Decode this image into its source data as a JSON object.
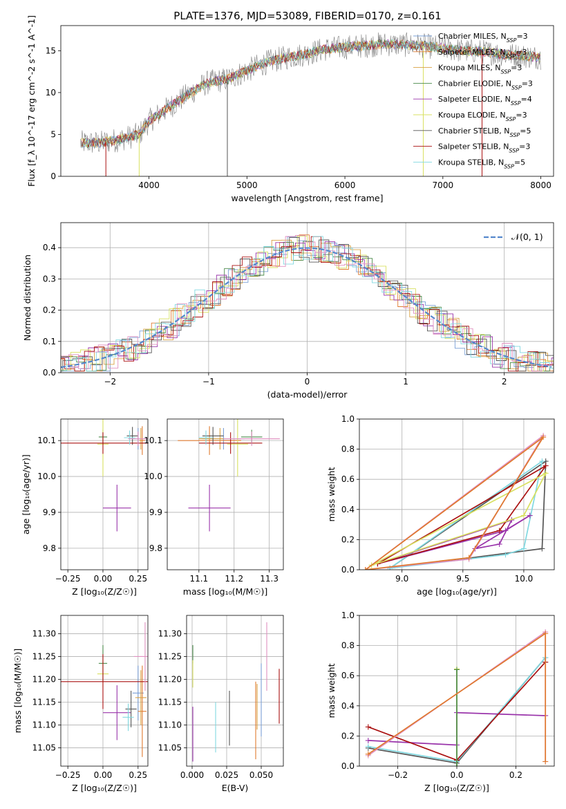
{
  "figure": {
    "title": "PLATE=1376, MJD=53089, FIBERID=0170, z=0.161"
  },
  "colors": {
    "chabrier_miles": "#7a9fd6",
    "salpeter_miles": "#e07a2e",
    "kroupa_miles": "#d9a040",
    "chabrier_elodie": "#4a8a4a",
    "salpeter_elodie": "#9933aa",
    "kroupa_elodie": "#d8e060",
    "chabrier_stelib": "#555555",
    "salpeter_stelib": "#aa1111",
    "kroupa_stelib": "#80d8e0",
    "pink": "#e090c0",
    "gauss": "#5588cc",
    "data": "#808080"
  },
  "chart_data": [
    {
      "id": "spectrum",
      "type": "line",
      "xlabel": "wavelength [Angstrom, rest frame]",
      "ylabel": "Flux [f_λ 10^-17 erg cm^-2 s^-1 A^-1]",
      "xlim": [
        3100,
        8130
      ],
      "ylim": [
        0,
        18
      ],
      "xticks": [
        "4000",
        "5000",
        "6000",
        "7000",
        "8000"
      ],
      "yticks": [
        "0",
        "5",
        "10",
        "15"
      ],
      "legend_position": "right",
      "legend": [
        {
          "label": "Chabrier MILES, N",
          "sub": "SSP",
          "eq": "=3"
        },
        {
          "label": "Salpeter MILES, N",
          "sub": "SSP",
          "eq": "=3"
        },
        {
          "label": "Kroupa MILES, N",
          "sub": "SSP",
          "eq": "=3"
        },
        {
          "label": "Chabrier ELODIE, N",
          "sub": "SSP",
          "eq": "=3"
        },
        {
          "label": "Salpeter ELODIE, N",
          "sub": "SSP",
          "eq": "=4"
        },
        {
          "label": "Kroupa ELODIE, N",
          "sub": "SSP",
          "eq": "=3"
        },
        {
          "label": "Chabrier STELIB, N",
          "sub": "SSP",
          "eq": "=5"
        },
        {
          "label": "Salpeter STELIB, N",
          "sub": "SSP",
          "eq": "=3"
        },
        {
          "label": "Kroupa STELIB, N",
          "sub": "SSP",
          "eq": "=5"
        }
      ],
      "continuum": {
        "x": [
          3300,
          3500,
          3700,
          3900,
          4000,
          4200,
          4400,
          4600,
          4800,
          5000,
          5200,
          5400,
          5600,
          5800,
          6000,
          6200,
          6400,
          6600,
          6800,
          7000,
          7200,
          7400,
          7600,
          7800,
          8000
        ],
        "y": [
          4.0,
          4.0,
          4.4,
          5.0,
          6.6,
          8.2,
          9.8,
          11.2,
          11.6,
          12.6,
          13.6,
          14.2,
          14.6,
          15.2,
          15.4,
          15.6,
          15.8,
          15.7,
          15.6,
          15.3,
          15.0,
          14.9,
          14.6,
          14.4,
          14.2
        ]
      }
    },
    {
      "id": "residuals",
      "type": "line",
      "xlabel": "(data-model)/error",
      "ylabel": "Normed distribution",
      "xlim": [
        -2.5,
        2.5
      ],
      "ylim": [
        0,
        0.48
      ],
      "xticks": [
        "−2",
        "−1",
        "0",
        "1",
        "2"
      ],
      "yticks": [
        "0.0",
        "0.1",
        "0.2",
        "0.3",
        "0.4"
      ],
      "grid": true,
      "legend_position": "top-right",
      "legend": [
        {
          "label": "𝒩(0, 1)"
        }
      ]
    },
    {
      "id": "age_vs_Z",
      "type": "scatter",
      "xlabel": "Z [log₁₀(Z/Z☉)]",
      "ylabel": "age  [log₁₀(age/yr)]",
      "xlim": [
        -0.3,
        0.32
      ],
      "ylim": [
        9.74,
        10.16
      ],
      "xticks": [
        "−0.25",
        "0.00",
        "0.25"
      ],
      "yticks": [
        "9.8",
        "9.9",
        "10.0",
        "10.1"
      ],
      "grid": true,
      "points": [
        {
          "c": "chabrier_miles",
          "x": 0.25,
          "xe": 0.04,
          "y": 10.105,
          "ye": 0.03
        },
        {
          "c": "salpeter_miles",
          "x": 0.28,
          "xe": 0.02,
          "y": 10.1,
          "ye": 0.04
        },
        {
          "c": "kroupa_miles",
          "x": 0.27,
          "xe": 0.03,
          "y": 10.105,
          "ye": 0.03
        },
        {
          "c": "chabrier_elodie",
          "x": 0.0,
          "xe": 0.03,
          "y": 10.11,
          "ye": 0.02
        },
        {
          "c": "salpeter_elodie",
          "x": 0.1,
          "xe": 0.1,
          "y": 9.912,
          "ye": 0.065
        },
        {
          "c": "kroupa_elodie",
          "x": 0.0,
          "xe": 0.04,
          "y": 10.09,
          "ye": 0.09
        },
        {
          "c": "chabrier_stelib",
          "x": 0.21,
          "xe": 0.04,
          "y": 10.113,
          "ye": 0.025
        },
        {
          "c": "salpeter_stelib",
          "x": 0.0,
          "xe": 0.38,
          "y": 10.093,
          "ye": 0.03
        },
        {
          "c": "kroupa_stelib",
          "x": 0.19,
          "xe": 0.04,
          "y": 10.108,
          "ye": 0.02
        },
        {
          "c": "pink",
          "x": 0.25,
          "xe": 0.07,
          "y": 10.105,
          "ye": 0.02
        }
      ]
    },
    {
      "id": "age_vs_mass",
      "type": "scatter",
      "xlabel": "mass [log₁₀(M/M☉)]",
      "ylabel": "",
      "xlim": [
        11.01,
        11.34
      ],
      "ylim": [
        9.74,
        10.16
      ],
      "xticks": [
        "11.1",
        "11.2",
        "11.3"
      ],
      "yticks": [
        "9.8",
        "9.9",
        "10.0",
        "10.1"
      ],
      "grid": true,
      "points": [
        {
          "c": "chabrier_miles",
          "x": 11.17,
          "xe": 0.06,
          "y": 10.105,
          "ye": 0.03
        },
        {
          "c": "salpeter_miles",
          "x": 11.13,
          "xe": 0.09,
          "y": 10.1,
          "ye": 0.04
        },
        {
          "c": "kroupa_miles",
          "x": 11.16,
          "xe": 0.06,
          "y": 10.105,
          "ye": 0.03
        },
        {
          "c": "chabrier_elodie",
          "x": 11.25,
          "xe": 0.03,
          "y": 10.11,
          "ye": 0.02
        },
        {
          "c": "salpeter_elodie",
          "x": 11.13,
          "xe": 0.06,
          "y": 9.912,
          "ye": 0.065
        },
        {
          "c": "kroupa_elodie",
          "x": 11.21,
          "xe": 0.03,
          "y": 10.09,
          "ye": 0.09
        },
        {
          "c": "chabrier_stelib",
          "x": 11.14,
          "xe": 0.03,
          "y": 10.113,
          "ye": 0.025
        },
        {
          "c": "salpeter_stelib",
          "x": 11.19,
          "xe": 0.09,
          "y": 10.093,
          "ye": 0.03
        },
        {
          "c": "kroupa_stelib",
          "x": 11.12,
          "xe": 0.02,
          "y": 10.108,
          "ye": 0.02
        },
        {
          "c": "pink",
          "x": 11.25,
          "xe": 0.08,
          "y": 10.105,
          "ye": 0.02
        }
      ]
    },
    {
      "id": "massweight_vs_age",
      "type": "line",
      "xlabel": "age  [log₁₀(age/yr)]",
      "ylabel": "mass weight",
      "xlim": [
        8.65,
        10.25
      ],
      "ylim": [
        0,
        1.0
      ],
      "xticks": [
        "9.0",
        "9.5",
        "10.0"
      ],
      "yticks": [
        "0.0",
        "0.2",
        "0.4",
        "0.6",
        "0.8",
        "1.0"
      ],
      "grid": true,
      "series": [
        {
          "c": "chabrier_stelib",
          "x": [
            8.9,
            10.15,
            10.18,
            8.9
          ],
          "y": [
            0.01,
            0.14,
            0.72,
            0.01
          ]
        },
        {
          "c": "kroupa_stelib",
          "x": [
            8.9,
            9.85,
            10.0,
            10.15,
            8.9
          ],
          "y": [
            0.01,
            0.1,
            0.14,
            0.72,
            0.01
          ]
        },
        {
          "c": "salpeter_elodie",
          "x": [
            8.8,
            9.85,
            10.05,
            9.6,
            9.8,
            9.9,
            8.8
          ],
          "y": [
            0.04,
            0.26,
            0.36,
            0.14,
            0.17,
            0.33,
            0.04
          ]
        },
        {
          "c": "salpeter_stelib",
          "x": [
            8.8,
            10.18,
            9.8,
            8.8
          ],
          "y": [
            0.04,
            0.69,
            0.26,
            0.04
          ]
        },
        {
          "c": "kroupa_elodie",
          "x": [
            8.75,
            10.18,
            10.0,
            8.75
          ],
          "y": [
            0.03,
            0.64,
            0.36,
            0.03
          ]
        },
        {
          "c": "pink",
          "x": [
            8.7,
            10.16,
            9.55,
            8.7
          ],
          "y": [
            0.0,
            0.89,
            0.07,
            0.0
          ]
        },
        {
          "c": "salpeter_miles",
          "x": [
            8.7,
            10.16,
            9.55,
            8.7
          ],
          "y": [
            0.0,
            0.88,
            0.08,
            0.0
          ]
        }
      ]
    },
    {
      "id": "mass_vs_Z",
      "type": "scatter",
      "xlabel": "Z [log₁₀(Z/Z☉)]",
      "ylabel": "mass [log₁₀(M/M☉)]",
      "xlim": [
        -0.3,
        0.32
      ],
      "ylim": [
        11.01,
        11.34
      ],
      "xticks": [
        "−0.25",
        "0.00",
        "0.25"
      ],
      "yticks": [
        "11.05",
        "11.10",
        "11.15",
        "11.20",
        "11.25",
        "11.30"
      ],
      "grid": true,
      "points": [
        {
          "c": "chabrier_miles",
          "x": 0.25,
          "xe": 0.04,
          "y": 11.17,
          "ye": 0.06
        },
        {
          "c": "salpeter_miles",
          "x": 0.28,
          "xe": 0.03,
          "y": 11.13,
          "ye": 0.1
        },
        {
          "c": "kroupa_miles",
          "x": 0.27,
          "xe": 0.04,
          "y": 11.16,
          "ye": 0.06
        },
        {
          "c": "chabrier_elodie",
          "x": 0.0,
          "xe": 0.03,
          "y": 11.235,
          "ye": 0.04
        },
        {
          "c": "salpeter_elodie",
          "x": 0.1,
          "xe": 0.1,
          "y": 11.127,
          "ye": 0.06
        },
        {
          "c": "kroupa_elodie",
          "x": 0.0,
          "xe": 0.04,
          "y": 11.212,
          "ye": 0.03
        },
        {
          "c": "chabrier_stelib",
          "x": 0.2,
          "xe": 0.04,
          "y": 11.135,
          "ye": 0.04
        },
        {
          "c": "salpeter_stelib",
          "x": 0.0,
          "xe": 0.38,
          "y": 11.195,
          "ye": 0.06
        },
        {
          "c": "kroupa_stelib",
          "x": 0.18,
          "xe": 0.04,
          "y": 11.117,
          "ye": 0.03
        },
        {
          "c": "pink",
          "x": 0.3,
          "xe": 0.08,
          "y": 11.25,
          "ye": 0.075
        }
      ]
    },
    {
      "id": "mass_vs_EBV",
      "type": "scatter",
      "xlabel": "E(B-V)",
      "ylabel": "",
      "xlim": [
        -0.004,
        0.066
      ],
      "ylim": [
        11.01,
        11.34
      ],
      "xticks": [
        "0.000",
        "0.025",
        "0.050"
      ],
      "yticks": [
        "11.05",
        "11.10",
        "11.15",
        "11.20",
        "11.25",
        "11.30"
      ],
      "grid": true,
      "points": [
        {
          "c": "chabrier_miles",
          "x": 0.05,
          "xe": 0,
          "y": 11.155,
          "ye": 0.08
        },
        {
          "c": "salpeter_miles",
          "x": 0.046,
          "xe": 0,
          "y": 11.11,
          "ye": 0.085
        },
        {
          "c": "kroupa_miles",
          "x": 0.047,
          "xe": 0,
          "y": 11.14,
          "ye": 0.05
        },
        {
          "c": "chabrier_elodie",
          "x": 0.0005,
          "xe": 0,
          "y": 11.255,
          "ye": 0.02
        },
        {
          "c": "salpeter_elodie",
          "x": 0.0005,
          "xe": 0,
          "y": 11.08,
          "ye": 0.06
        },
        {
          "c": "kroupa_elodie",
          "x": 0.0005,
          "xe": 0,
          "y": 11.212,
          "ye": 0.03
        },
        {
          "c": "chabrier_stelib",
          "x": 0.027,
          "xe": 0,
          "y": 11.115,
          "ye": 0.06
        },
        {
          "c": "salpeter_stelib",
          "x": 0.063,
          "xe": 0,
          "y": 11.163,
          "ye": 0.06
        },
        {
          "c": "kroupa_stelib",
          "x": 0.017,
          "xe": 0,
          "y": 11.095,
          "ye": 0.055
        },
        {
          "c": "pink",
          "x": 0.054,
          "xe": 0,
          "y": 11.25,
          "ye": 0.075
        }
      ]
    },
    {
      "id": "massweight_vs_Z",
      "type": "line",
      "xlabel": "Z [log₁₀(Z/Z☉)]",
      "ylabel": "mass weight",
      "xlim": [
        -0.33,
        0.33
      ],
      "ylim": [
        0,
        1.0
      ],
      "xticks": [
        "−0.2",
        "0.0",
        "0.2"
      ],
      "yticks": [
        "0.0",
        "0.2",
        "0.4",
        "0.6",
        "0.8",
        "1.0"
      ],
      "grid": true,
      "series": [
        {
          "c": "chabrier_stelib",
          "x": [
            -0.3,
            0.0,
            0.3,
            0.3
          ],
          "y": [
            0.12,
            0.02,
            0.72,
            0.69
          ]
        },
        {
          "c": "kroupa_stelib",
          "x": [
            -0.3,
            0.0,
            0.3,
            0.3
          ],
          "y": [
            0.13,
            0.03,
            0.72,
            0.69
          ]
        },
        {
          "c": "salpeter_elodie",
          "x": [
            -0.3,
            0.0,
            0.0,
            0.3
          ],
          "y": [
            0.17,
            0.14,
            0.355,
            0.335
          ]
        },
        {
          "c": "salpeter_stelib",
          "x": [
            -0.3,
            0.0,
            0.3
          ],
          "y": [
            0.26,
            0.04,
            0.69
          ]
        },
        {
          "c": "kroupa_elodie",
          "x": [
            0.0,
            0.0
          ],
          "y": [
            0.0,
            0.645
          ]
        },
        {
          "c": "chabrier_elodie",
          "x": [
            0.0,
            0.0
          ],
          "y": [
            0.0,
            0.64
          ]
        },
        {
          "c": "pink",
          "x": [
            -0.3,
            0.3,
            0.3
          ],
          "y": [
            0.07,
            0.89,
            0.03
          ]
        },
        {
          "c": "salpeter_miles",
          "x": [
            -0.3,
            0.3,
            0.3
          ],
          "y": [
            0.08,
            0.88,
            0.03
          ]
        }
      ]
    }
  ]
}
